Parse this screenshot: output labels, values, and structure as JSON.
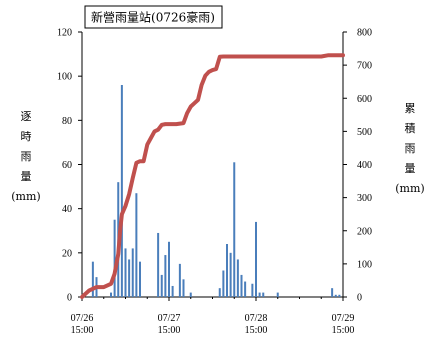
{
  "chart_data": {
    "type": "bar+line",
    "title": "新營雨量站(0726豪雨)",
    "left_axis": {
      "label": [
        "逐",
        "時",
        "雨",
        "量",
        "(mm)"
      ],
      "ylim": [
        0,
        120
      ],
      "ticks": [
        0,
        20,
        40,
        60,
        80,
        100,
        120
      ]
    },
    "right_axis": {
      "label": [
        "累",
        "積",
        "雨",
        "量",
        "(mm)"
      ],
      "ylim": [
        0,
        800
      ],
      "ticks": [
        0,
        100,
        200,
        300,
        400,
        500,
        600,
        700,
        800
      ]
    },
    "x_ticks": [
      {
        "hour": 0,
        "label": [
          "07/26",
          "15:00"
        ]
      },
      {
        "hour": 24,
        "label": [
          "07/27",
          "15:00"
        ]
      },
      {
        "hour": 48,
        "label": [
          "07/28",
          "15:00"
        ]
      },
      {
        "hour": 72,
        "label": [
          "07/29",
          "15:00"
        ]
      }
    ],
    "xlim": [
      0,
      72
    ],
    "series": [
      {
        "name": "逐時雨量",
        "type": "bar",
        "color": "#4a7ebb",
        "points": [
          [
            3,
            16
          ],
          [
            4,
            9
          ],
          [
            8,
            2
          ],
          [
            9,
            35
          ],
          [
            10,
            52
          ],
          [
            11,
            96
          ],
          [
            12,
            22
          ],
          [
            13,
            17
          ],
          [
            14,
            22
          ],
          [
            15,
            47
          ],
          [
            16,
            16
          ],
          [
            21,
            29
          ],
          [
            22,
            10
          ],
          [
            23,
            19
          ],
          [
            24,
            25
          ],
          [
            25,
            5
          ],
          [
            27,
            15
          ],
          [
            28,
            8
          ],
          [
            30,
            2
          ],
          [
            38,
            4
          ],
          [
            39,
            12
          ],
          [
            40,
            24
          ],
          [
            41,
            20
          ],
          [
            42,
            61
          ],
          [
            43,
            17
          ],
          [
            44,
            10
          ],
          [
            45,
            7
          ],
          [
            47,
            6
          ],
          [
            48,
            34
          ],
          [
            49,
            2
          ],
          [
            50,
            2
          ],
          [
            54,
            2
          ],
          [
            69,
            4
          ],
          [
            70,
            1
          ],
          [
            71,
            1
          ]
        ]
      },
      {
        "name": "累積雨量",
        "type": "line",
        "color": "#c0504d",
        "points": [
          [
            0,
            0
          ],
          [
            1,
            10
          ],
          [
            2,
            20
          ],
          [
            4,
            30
          ],
          [
            6,
            30
          ],
          [
            8,
            40
          ],
          [
            9,
            70
          ],
          [
            10,
            130
          ],
          [
            10.5,
            200
          ],
          [
            11,
            250
          ],
          [
            12,
            275
          ],
          [
            13,
            310
          ],
          [
            14,
            360
          ],
          [
            15,
            405
          ],
          [
            16,
            410
          ],
          [
            17,
            410
          ],
          [
            18,
            460
          ],
          [
            19,
            480
          ],
          [
            20,
            500
          ],
          [
            21,
            505
          ],
          [
            22,
            520
          ],
          [
            23,
            522
          ],
          [
            24,
            522
          ],
          [
            26,
            522
          ],
          [
            28,
            525
          ],
          [
            29,
            555
          ],
          [
            30,
            575
          ],
          [
            31,
            585
          ],
          [
            32,
            595
          ],
          [
            33,
            640
          ],
          [
            34,
            668
          ],
          [
            35,
            680
          ],
          [
            36,
            685
          ],
          [
            37,
            688
          ],
          [
            38,
            725
          ],
          [
            39,
            726
          ],
          [
            41,
            726
          ],
          [
            48,
            726
          ],
          [
            66,
            726
          ],
          [
            68,
            730
          ],
          [
            71,
            730
          ],
          [
            72,
            730
          ]
        ]
      }
    ],
    "grid": false,
    "legend": "none"
  }
}
